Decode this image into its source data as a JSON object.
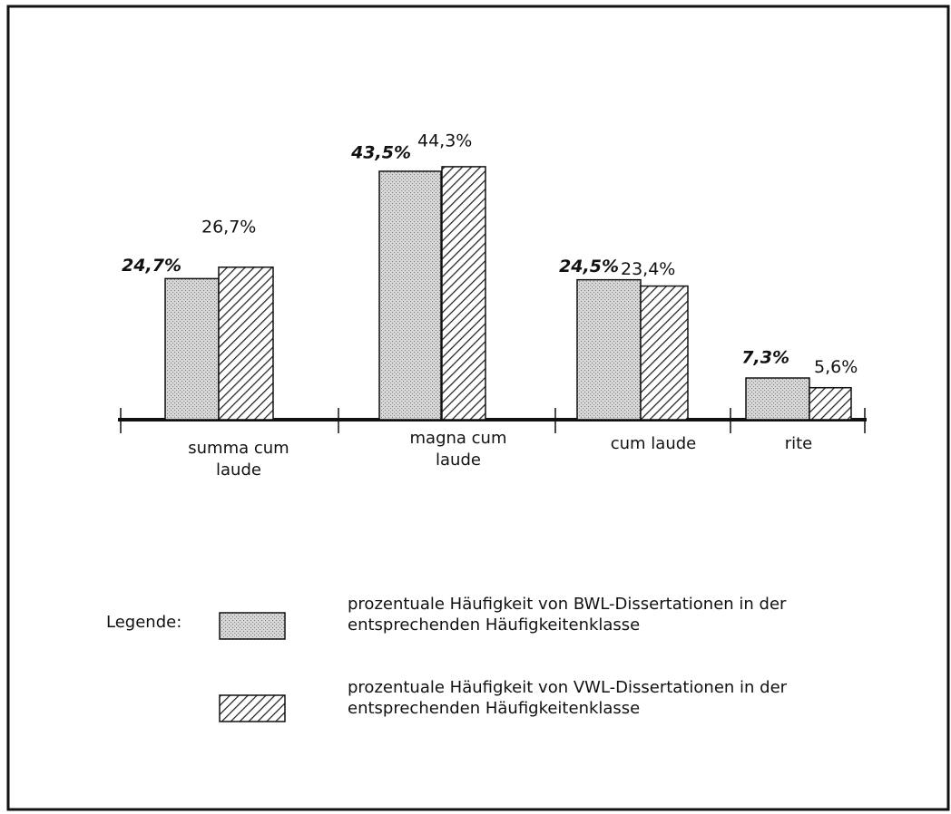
{
  "chart_data": {
    "type": "bar",
    "categories": [
      "summa cum laude",
      "magna cum laude",
      "cum laude",
      "rite"
    ],
    "legend_title": "Legende:",
    "series": [
      {
        "name": "prozentuale Häufigkeit von BWL-Dissertationen in der entsprechenden Häufigkeitenklasse",
        "color": "#c8c8c8",
        "pattern": "stipple",
        "values": [
          24.7,
          43.5,
          24.5,
          7.3
        ],
        "value_labels": [
          "24,7%",
          "43,5%",
          "24,5%",
          "7,3%"
        ]
      },
      {
        "name": "prozentuale Häufigkeit von VWL-Dissertationen in der entsprechenden Häufigkeitenklasse",
        "color": "#222222",
        "pattern": "hatch",
        "values": [
          26.7,
          44.3,
          23.4,
          5.6
        ],
        "value_labels": [
          "26,7%",
          "44,3%",
          "23,4%",
          "5,6%"
        ]
      }
    ]
  }
}
